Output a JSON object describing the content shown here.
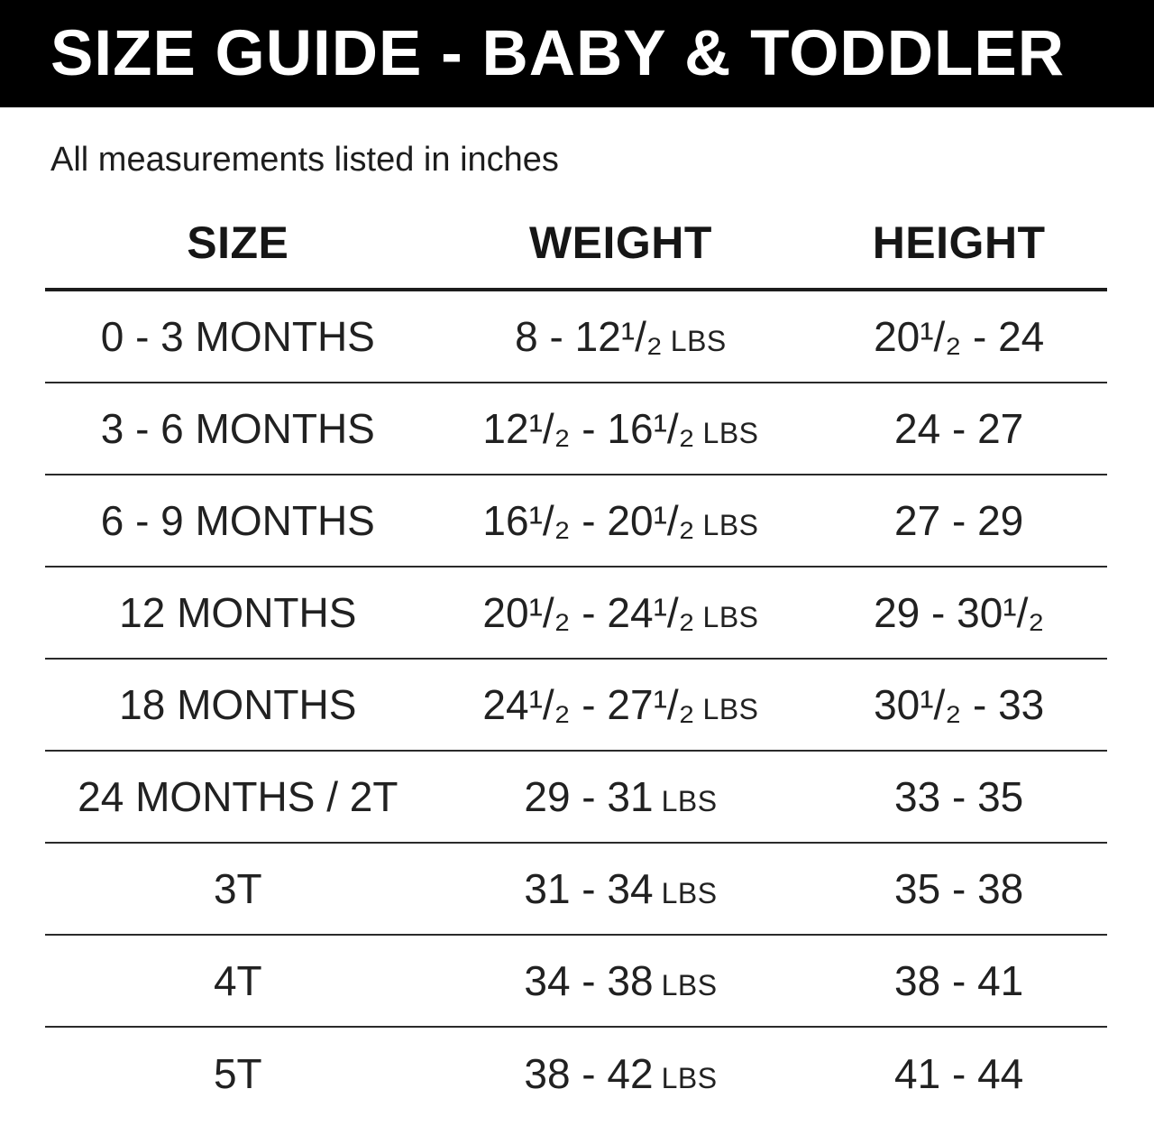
{
  "header": {
    "title": "SIZE GUIDE - BABY & TODDLER",
    "subtitle": "All measurements listed in inches"
  },
  "table": {
    "columns": [
      "SIZE",
      "WEIGHT",
      "HEIGHT"
    ],
    "rows": [
      {
        "size": "0 - 3 MONTHS",
        "weight": "8 - 12¹/₂",
        "weight_unit": "LBS",
        "height": "20¹/₂ - 24"
      },
      {
        "size": "3 - 6 MONTHS",
        "weight": "12¹/₂ - 16¹/₂",
        "weight_unit": "LBS",
        "height": "24 - 27"
      },
      {
        "size": "6 - 9 MONTHS",
        "weight": "16¹/₂ - 20¹/₂",
        "weight_unit": "LBS",
        "height": "27 - 29"
      },
      {
        "size": "12 MONTHS",
        "weight": "20¹/₂ - 24¹/₂",
        "weight_unit": "LBS",
        "height": "29 - 30¹/₂"
      },
      {
        "size": "18 MONTHS",
        "weight": "24¹/₂ - 27¹/₂",
        "weight_unit": "LBS",
        "height": "30¹/₂ - 33"
      },
      {
        "size": "24 MONTHS / 2T",
        "weight": "29 - 31",
        "weight_unit": "LBS",
        "height": "33 - 35"
      },
      {
        "size": "3T",
        "weight": "31 - 34",
        "weight_unit": "LBS",
        "height": "35 - 38"
      },
      {
        "size": "4T",
        "weight": "34 - 38",
        "weight_unit": "LBS",
        "height": "38 - 41"
      },
      {
        "size": "5T",
        "weight": "38 - 42",
        "weight_unit": "LBS",
        "height": "41 - 44"
      }
    ]
  },
  "chart_data": {
    "type": "table",
    "title": "SIZE GUIDE - BABY & TODDLER",
    "subtitle": "All measurements listed in inches",
    "columns": [
      "SIZE",
      "WEIGHT",
      "HEIGHT"
    ],
    "rows": [
      [
        "0 - 3 MONTHS",
        "8 - 12¹/₂ LBS",
        "20¹/₂ - 24"
      ],
      [
        "3 - 6 MONTHS",
        "12¹/₂ - 16¹/₂ LBS",
        "24 - 27"
      ],
      [
        "6 - 9 MONTHS",
        "16¹/₂ - 20¹/₂ LBS",
        "27 - 29"
      ],
      [
        "12 MONTHS",
        "20¹/₂ - 24¹/₂ LBS",
        "29 - 30¹/₂"
      ],
      [
        "18 MONTHS",
        "24¹/₂ - 27¹/₂ LBS",
        "30¹/₂ - 33"
      ],
      [
        "24 MONTHS / 2T",
        "29 - 31 LBS",
        "33 - 35"
      ],
      [
        "3T",
        "31 - 34 LBS",
        "35 - 38"
      ],
      [
        "4T",
        "34 - 38 LBS",
        "38 - 41"
      ],
      [
        "5T",
        "38 - 42 LBS",
        "41 - 44"
      ]
    ]
  },
  "colors": {
    "title_bar_bg": "#000000",
    "title_text": "#ffffff",
    "body_text": "#1f1f1f",
    "rule_line": "#2a2a2a",
    "background": "#ffffff"
  }
}
